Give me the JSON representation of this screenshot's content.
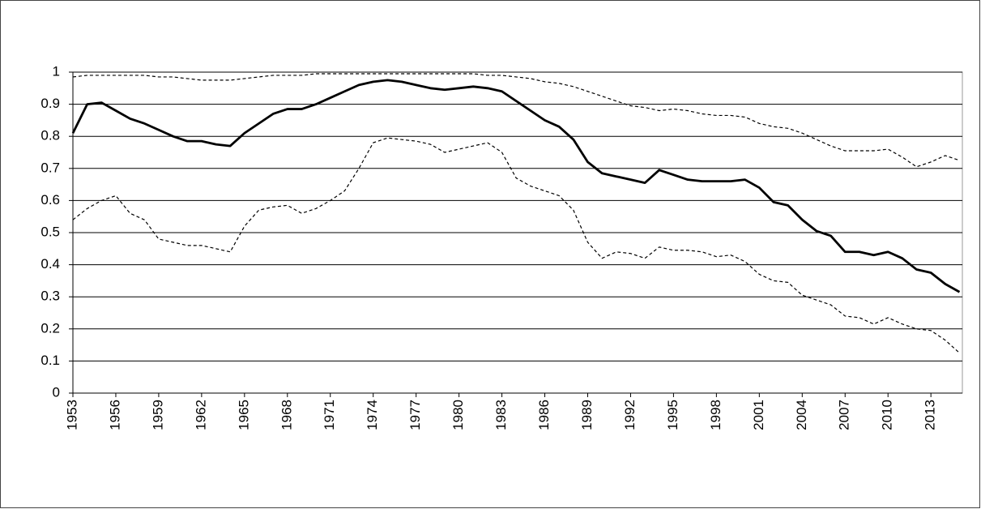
{
  "chart_data": {
    "type": "line",
    "x": [
      1953,
      1954,
      1955,
      1956,
      1957,
      1958,
      1959,
      1960,
      1961,
      1962,
      1963,
      1964,
      1965,
      1966,
      1967,
      1968,
      1969,
      1970,
      1971,
      1972,
      1973,
      1974,
      1975,
      1976,
      1977,
      1978,
      1979,
      1980,
      1981,
      1982,
      1983,
      1984,
      1985,
      1986,
      1987,
      1988,
      1989,
      1990,
      1991,
      1992,
      1993,
      1994,
      1995,
      1996,
      1997,
      1998,
      1999,
      2000,
      2001,
      2002,
      2003,
      2004,
      2005,
      2006,
      2007,
      2008,
      2009,
      2010,
      2011,
      2012,
      2013,
      2014,
      2015
    ],
    "series": [
      {
        "color": "#000000",
        "style": "solid",
        "values": [
          0.81,
          0.9,
          0.905,
          0.88,
          0.855,
          0.84,
          0.82,
          0.8,
          0.785,
          0.785,
          0.775,
          0.77,
          0.81,
          0.84,
          0.87,
          0.885,
          0.885,
          0.9,
          0.92,
          0.94,
          0.96,
          0.97,
          0.975,
          0.97,
          0.96,
          0.95,
          0.945,
          0.95,
          0.955,
          0.95,
          0.94,
          0.91,
          0.88,
          0.85,
          0.83,
          0.79,
          0.72,
          0.685,
          0.675,
          0.665,
          0.655,
          0.695,
          0.68,
          0.665,
          0.66,
          0.66,
          0.66,
          0.665,
          0.64,
          0.595,
          0.585,
          0.54,
          0.505,
          0.49,
          0.44,
          0.44,
          0.43,
          0.44,
          0.42,
          0.385,
          0.375,
          0.34,
          0.315
        ]
      },
      {
        "color": "#000000",
        "style": "dashed",
        "values": [
          0.985,
          0.99,
          0.99,
          0.99,
          0.99,
          0.99,
          0.985,
          0.985,
          0.98,
          0.975,
          0.975,
          0.975,
          0.98,
          0.985,
          0.99,
          0.99,
          0.99,
          0.995,
          0.995,
          0.995,
          0.995,
          0.995,
          0.995,
          0.995,
          0.995,
          0.995,
          0.995,
          0.995,
          0.995,
          0.99,
          0.99,
          0.985,
          0.98,
          0.97,
          0.965,
          0.955,
          0.94,
          0.925,
          0.91,
          0.895,
          0.89,
          0.88,
          0.885,
          0.88,
          0.87,
          0.865,
          0.865,
          0.86,
          0.84,
          0.83,
          0.825,
          0.81,
          0.79,
          0.77,
          0.755,
          0.755,
          0.755,
          0.76,
          0.735,
          0.705,
          0.72,
          0.74,
          0.725
        ]
      },
      {
        "color": "#000000",
        "style": "dashed",
        "values": [
          0.54,
          0.575,
          0.6,
          0.615,
          0.56,
          0.54,
          0.48,
          0.47,
          0.46,
          0.46,
          0.45,
          0.44,
          0.52,
          0.57,
          0.58,
          0.585,
          0.56,
          0.575,
          0.6,
          0.63,
          0.7,
          0.78,
          0.795,
          0.79,
          0.785,
          0.775,
          0.75,
          0.76,
          0.77,
          0.78,
          0.75,
          0.67,
          0.645,
          0.63,
          0.615,
          0.57,
          0.47,
          0.42,
          0.44,
          0.435,
          0.42,
          0.455,
          0.445,
          0.445,
          0.44,
          0.425,
          0.43,
          0.41,
          0.37,
          0.35,
          0.345,
          0.305,
          0.29,
          0.275,
          0.24,
          0.235,
          0.215,
          0.235,
          0.215,
          0.2,
          0.195,
          0.165,
          0.125
        ]
      }
    ],
    "xlim": [
      1953,
      2015.2
    ],
    "xticks": [
      1953,
      1956,
      1959,
      1962,
      1965,
      1968,
      1971,
      1974,
      1977,
      1980,
      1983,
      1986,
      1989,
      1992,
      1995,
      1998,
      2001,
      2004,
      2007,
      2010,
      2013
    ],
    "ylim": [
      0,
      1
    ],
    "yticks": [
      0,
      0.1,
      0.2,
      0.3,
      0.4,
      0.5,
      0.6,
      0.7,
      0.8,
      0.9,
      1
    ],
    "grid": true
  }
}
